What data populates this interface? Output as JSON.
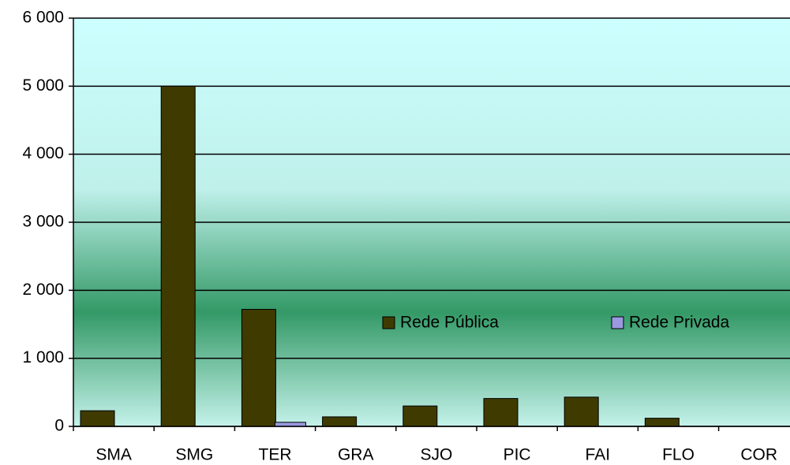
{
  "chart_data": {
    "type": "bar",
    "categories": [
      "SMA",
      "SMG",
      "TER",
      "GRA",
      "SJO",
      "PIC",
      "FAI",
      "FLO",
      "COR"
    ],
    "series": [
      {
        "name": "Rede Pública",
        "color": "#3f3a00",
        "values": [
          230,
          5000,
          1720,
          140,
          300,
          410,
          430,
          120,
          0
        ]
      },
      {
        "name": "Rede Privada",
        "color": "#9a9ae0",
        "values": [
          0,
          0,
          60,
          0,
          0,
          0,
          0,
          0,
          0
        ]
      }
    ],
    "ylim": [
      0,
      6000
    ],
    "yticks": [
      0,
      {
        "value": 1000,
        "label": "1 000"
      },
      {
        "value": 2000,
        "label": "2 000"
      },
      {
        "value": 3000,
        "label": "3 000"
      },
      {
        "value": 4000,
        "label": "4 000"
      },
      {
        "value": 5000,
        "label": "5 000"
      },
      {
        "value": 6000,
        "label": "6 000"
      }
    ],
    "grid": true,
    "legend": "center"
  }
}
